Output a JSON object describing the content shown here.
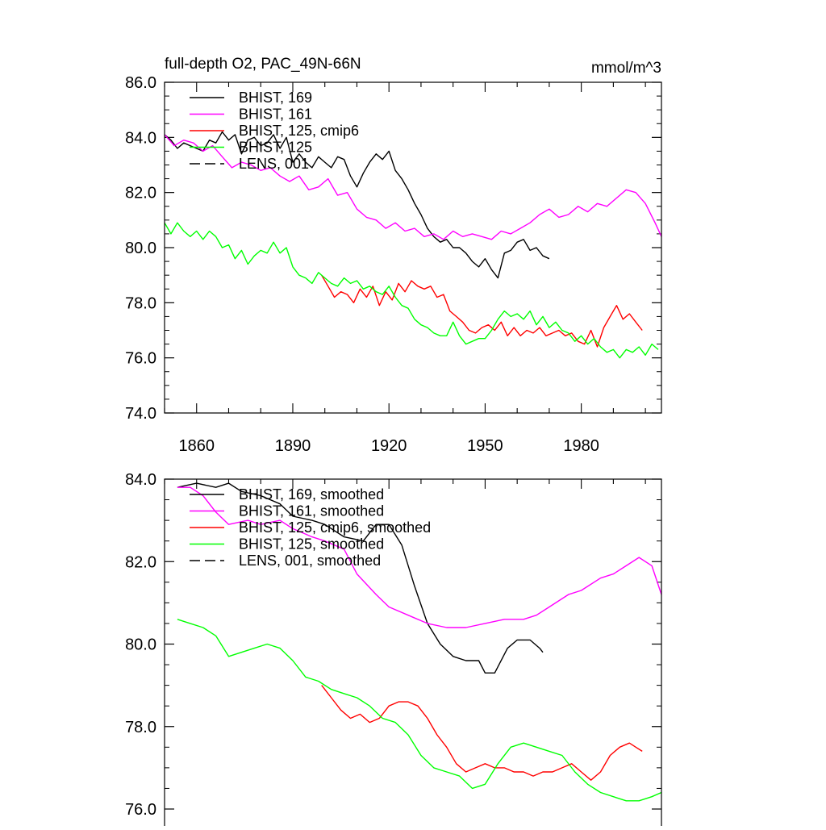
{
  "chart_data": [
    {
      "type": "line",
      "title": "full-depth O2, PAC_49N-66N",
      "units": "mmol/m^3",
      "xlim": [
        1850,
        2005
      ],
      "ylim": [
        74.0,
        86.0
      ],
      "xticks": [
        1860,
        1890,
        1920,
        1950,
        1980
      ],
      "yticks": [
        "74.0",
        "76.0",
        "78.0",
        "80.0",
        "82.0",
        "84.0",
        "86.0"
      ],
      "legend": [
        {
          "label": "BHIST, 169",
          "color": "#000000",
          "dash": "solid"
        },
        {
          "label": "BHIST, 161",
          "color": "#ff00ff",
          "dash": "solid"
        },
        {
          "label": "BHIST, 125, cmip6",
          "color": "#ff0000",
          "dash": "solid"
        },
        {
          "label": "BHIST, 125",
          "color": "#00ff00",
          "dash": "solid"
        },
        {
          "label": "LENS, 001",
          "color": "#000000",
          "dash": "dashed"
        }
      ],
      "series": [
        {
          "name": "BHIST, 169",
          "color": "#000000",
          "x": [
            1850,
            1852,
            1854,
            1856,
            1858,
            1860,
            1862,
            1864,
            1866,
            1868,
            1870,
            1872,
            1874,
            1876,
            1878,
            1880,
            1882,
            1884,
            1886,
            1888,
            1890,
            1892,
            1894,
            1896,
            1898,
            1900,
            1902,
            1904,
            1906,
            1908,
            1910,
            1912,
            1914,
            1916,
            1918,
            1920,
            1922,
            1924,
            1926,
            1928,
            1930,
            1932,
            1934,
            1936,
            1938,
            1940,
            1942,
            1944,
            1946,
            1948,
            1950,
            1952,
            1954,
            1956,
            1958,
            1960,
            1962,
            1964,
            1966,
            1968,
            1970
          ],
          "values": [
            84.1,
            83.9,
            83.6,
            83.8,
            83.7,
            83.6,
            83.5,
            83.9,
            83.8,
            84.2,
            83.9,
            84.1,
            83.4,
            83.9,
            84.0,
            83.7,
            83.8,
            84.1,
            83.6,
            84.0,
            83.1,
            83.4,
            83.1,
            82.9,
            83.3,
            83.1,
            82.9,
            83.3,
            83.2,
            82.6,
            82.2,
            82.7,
            83.1,
            83.4,
            83.2,
            83.5,
            82.8,
            82.5,
            82.1,
            81.6,
            81.2,
            80.7,
            80.4,
            80.2,
            80.3,
            80.0,
            80.0,
            79.8,
            79.5,
            79.3,
            79.6,
            79.2,
            78.9,
            79.8,
            79.9,
            80.2,
            80.3,
            79.9,
            80.0,
            79.7,
            79.6
          ]
        },
        {
          "name": "BHIST, 161",
          "color": "#ff00ff",
          "x": [
            1850,
            1853,
            1856,
            1859,
            1862,
            1865,
            1868,
            1871,
            1874,
            1877,
            1880,
            1883,
            1886,
            1889,
            1892,
            1895,
            1898,
            1901,
            1904,
            1907,
            1910,
            1913,
            1916,
            1919,
            1922,
            1925,
            1928,
            1931,
            1934,
            1937,
            1940,
            1943,
            1946,
            1949,
            1952,
            1955,
            1958,
            1961,
            1964,
            1967,
            1970,
            1973,
            1976,
            1979,
            1982,
            1985,
            1988,
            1991,
            1994,
            1997,
            2000,
            2003,
            2005
          ],
          "values": [
            84.1,
            83.7,
            83.9,
            83.8,
            83.5,
            83.7,
            83.3,
            82.9,
            83.1,
            83.0,
            82.8,
            82.9,
            82.6,
            82.4,
            82.6,
            82.1,
            82.2,
            82.5,
            81.9,
            82.0,
            81.4,
            81.1,
            81.0,
            80.7,
            80.9,
            80.6,
            80.7,
            80.4,
            80.5,
            80.3,
            80.6,
            80.4,
            80.5,
            80.4,
            80.3,
            80.6,
            80.5,
            80.7,
            80.9,
            81.2,
            81.4,
            81.1,
            81.2,
            81.5,
            81.3,
            81.6,
            81.5,
            81.8,
            82.1,
            82.0,
            81.6,
            80.9,
            80.4
          ]
        },
        {
          "name": "BHIST, 125, cmip6",
          "color": "#ff0000",
          "x": [
            1899,
            1901,
            1903,
            1905,
            1907,
            1909,
            1911,
            1913,
            1915,
            1917,
            1919,
            1921,
            1923,
            1925,
            1927,
            1929,
            1931,
            1933,
            1935,
            1937,
            1939,
            1941,
            1943,
            1945,
            1947,
            1949,
            1951,
            1953,
            1955,
            1957,
            1959,
            1961,
            1963,
            1965,
            1967,
            1969,
            1971,
            1973,
            1975,
            1977,
            1979,
            1981,
            1983,
            1985,
            1987,
            1989,
            1991,
            1993,
            1995,
            1997,
            1999
          ],
          "values": [
            79.0,
            78.6,
            78.2,
            78.4,
            78.3,
            78.0,
            78.5,
            78.2,
            78.6,
            77.9,
            78.4,
            78.1,
            78.7,
            78.4,
            78.8,
            78.6,
            78.5,
            78.6,
            78.2,
            78.3,
            77.7,
            77.5,
            77.3,
            77.0,
            76.9,
            77.1,
            77.2,
            77.0,
            77.3,
            76.8,
            77.1,
            76.8,
            77.0,
            76.9,
            77.1,
            76.8,
            76.9,
            77.0,
            76.8,
            76.9,
            76.6,
            76.5,
            77.0,
            76.4,
            77.1,
            77.5,
            77.9,
            77.4,
            77.6,
            77.3,
            77.0
          ]
        },
        {
          "name": "BHIST, 125",
          "color": "#00ff00",
          "x": [
            1850,
            1852,
            1854,
            1856,
            1858,
            1860,
            1862,
            1864,
            1866,
            1868,
            1870,
            1872,
            1874,
            1876,
            1878,
            1880,
            1882,
            1884,
            1886,
            1888,
            1890,
            1892,
            1894,
            1896,
            1898,
            1900,
            1902,
            1904,
            1906,
            1908,
            1910,
            1912,
            1914,
            1916,
            1918,
            1920,
            1922,
            1924,
            1926,
            1928,
            1930,
            1932,
            1934,
            1936,
            1938,
            1940,
            1942,
            1944,
            1946,
            1948,
            1950,
            1952,
            1954,
            1956,
            1958,
            1960,
            1962,
            1964,
            1966,
            1968,
            1970,
            1972,
            1974,
            1976,
            1978,
            1980,
            1982,
            1984,
            1986,
            1988,
            1990,
            1992,
            1994,
            1996,
            1998,
            2000,
            2002,
            2004
          ],
          "values": [
            80.9,
            80.5,
            80.9,
            80.6,
            80.4,
            80.6,
            80.3,
            80.6,
            80.4,
            80.0,
            80.1,
            79.6,
            79.9,
            79.4,
            79.7,
            79.9,
            79.8,
            80.2,
            79.8,
            80.0,
            79.3,
            79.0,
            78.9,
            78.7,
            79.1,
            78.9,
            78.7,
            78.6,
            78.9,
            78.7,
            78.8,
            78.5,
            78.6,
            78.4,
            78.3,
            78.6,
            78.2,
            77.9,
            77.8,
            77.4,
            77.2,
            77.1,
            76.9,
            76.8,
            76.8,
            77.3,
            76.8,
            76.5,
            76.6,
            76.7,
            76.7,
            77.0,
            77.4,
            77.7,
            77.5,
            77.6,
            77.4,
            77.7,
            77.2,
            77.5,
            77.1,
            77.3,
            77.0,
            76.9,
            76.6,
            76.8,
            76.5,
            76.7,
            76.4,
            76.2,
            76.3,
            76.0,
            76.3,
            76.2,
            76.4,
            76.1,
            76.5,
            76.3
          ]
        }
      ]
    },
    {
      "type": "line",
      "xlim": [
        1850,
        2005
      ],
      "ylim": [
        76.0,
        84.0
      ],
      "yticks": [
        "76.0",
        "78.0",
        "80.0",
        "82.0",
        "84.0"
      ],
      "legend": [
        {
          "label": "BHIST, 169, smoothed",
          "color": "#000000",
          "dash": "solid"
        },
        {
          "label": "BHIST, 161, smoothed",
          "color": "#ff00ff",
          "dash": "solid"
        },
        {
          "label": "BHIST, 125, cmip6, smoothed",
          "color": "#ff0000",
          "dash": "solid"
        },
        {
          "label": "BHIST, 125, smoothed",
          "color": "#00ff00",
          "dash": "solid"
        },
        {
          "label": "LENS, 001, smoothed",
          "color": "#000000",
          "dash": "dashed"
        }
      ],
      "series": [
        {
          "name": "BHIST, 169, smoothed",
          "color": "#000000",
          "x": [
            1854,
            1860,
            1866,
            1870,
            1874,
            1880,
            1886,
            1890,
            1896,
            1900,
            1906,
            1912,
            1916,
            1920,
            1924,
            1928,
            1932,
            1936,
            1940,
            1944,
            1948,
            1950,
            1953,
            1957,
            1960,
            1964,
            1967,
            1968
          ],
          "values": [
            83.8,
            83.9,
            83.8,
            83.9,
            83.7,
            83.6,
            83.4,
            83.1,
            83.0,
            82.9,
            82.6,
            82.5,
            82.9,
            82.9,
            82.4,
            81.4,
            80.5,
            80.0,
            79.7,
            79.6,
            79.6,
            79.3,
            79.3,
            79.9,
            80.1,
            80.1,
            79.9,
            79.8
          ]
        },
        {
          "name": "BHIST, 161, smoothed",
          "color": "#ff00ff",
          "x": [
            1854,
            1858,
            1862,
            1866,
            1870,
            1876,
            1880,
            1886,
            1890,
            1896,
            1900,
            1906,
            1910,
            1916,
            1920,
            1926,
            1932,
            1938,
            1944,
            1950,
            1956,
            1962,
            1966,
            1970,
            1976,
            1980,
            1986,
            1990,
            1994,
            1998,
            2002,
            2005
          ],
          "values": [
            83.8,
            83.8,
            83.6,
            83.2,
            82.9,
            83.0,
            82.9,
            83.0,
            82.8,
            82.6,
            82.5,
            82.3,
            81.7,
            81.2,
            80.9,
            80.7,
            80.5,
            80.4,
            80.4,
            80.5,
            80.6,
            80.6,
            80.7,
            80.9,
            81.2,
            81.3,
            81.6,
            81.7,
            81.9,
            82.1,
            81.9,
            81.2
          ]
        },
        {
          "name": "BHIST, 125, cmip6, smoothed",
          "color": "#ff0000",
          "x": [
            1899,
            1902,
            1905,
            1908,
            1911,
            1914,
            1917,
            1920,
            1923,
            1926,
            1929,
            1932,
            1935,
            1938,
            1941,
            1944,
            1947,
            1950,
            1953,
            1956,
            1959,
            1962,
            1965,
            1968,
            1971,
            1974,
            1977,
            1980,
            1983,
            1986,
            1989,
            1992,
            1995,
            1997,
            1999
          ],
          "values": [
            79.0,
            78.7,
            78.4,
            78.2,
            78.3,
            78.1,
            78.2,
            78.5,
            78.6,
            78.6,
            78.5,
            78.2,
            77.8,
            77.5,
            77.1,
            76.9,
            77.0,
            77.1,
            77.0,
            77.0,
            76.9,
            76.9,
            76.8,
            76.9,
            76.9,
            77.0,
            77.1,
            76.9,
            76.7,
            76.9,
            77.3,
            77.5,
            77.6,
            77.5,
            77.4
          ]
        },
        {
          "name": "BHIST, 125, smoothed",
          "color": "#00ff00",
          "x": [
            1854,
            1858,
            1862,
            1866,
            1870,
            1874,
            1878,
            1882,
            1886,
            1890,
            1894,
            1898,
            1902,
            1906,
            1910,
            1914,
            1918,
            1922,
            1926,
            1930,
            1934,
            1938,
            1942,
            1946,
            1950,
            1954,
            1958,
            1962,
            1966,
            1970,
            1974,
            1978,
            1982,
            1986,
            1990,
            1994,
            1998,
            2002,
            2005
          ],
          "values": [
            80.6,
            80.5,
            80.4,
            80.2,
            79.7,
            79.8,
            79.9,
            80.0,
            79.9,
            79.6,
            79.2,
            79.1,
            78.9,
            78.8,
            78.7,
            78.5,
            78.2,
            78.1,
            77.8,
            77.3,
            77.0,
            76.9,
            76.8,
            76.5,
            76.6,
            77.1,
            77.5,
            77.6,
            77.5,
            77.4,
            77.3,
            76.9,
            76.6,
            76.4,
            76.3,
            76.2,
            76.2,
            76.3,
            76.4
          ]
        }
      ]
    }
  ]
}
